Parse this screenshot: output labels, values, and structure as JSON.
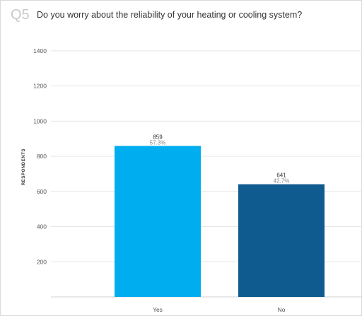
{
  "question": {
    "number": "Q5",
    "text": "Do you worry about the reliability of your heating or cooling system?"
  },
  "chart_data": {
    "type": "bar",
    "title": "Do you worry about the reliability of your heating or cooling system?",
    "xlabel": "",
    "ylabel": "RESPONDENTS",
    "categories": [
      "Yes",
      "No"
    ],
    "values": [
      859,
      641
    ],
    "percent_labels": [
      "57.3%",
      "42.7%"
    ],
    "ylim": [
      0,
      1500
    ],
    "yticks": [
      200,
      400,
      600,
      800,
      1000,
      1200,
      1400
    ],
    "grid": true,
    "bar_colors": [
      "#00aeef",
      "#0f5b8f"
    ],
    "grid_color": "#e6e6e6"
  }
}
